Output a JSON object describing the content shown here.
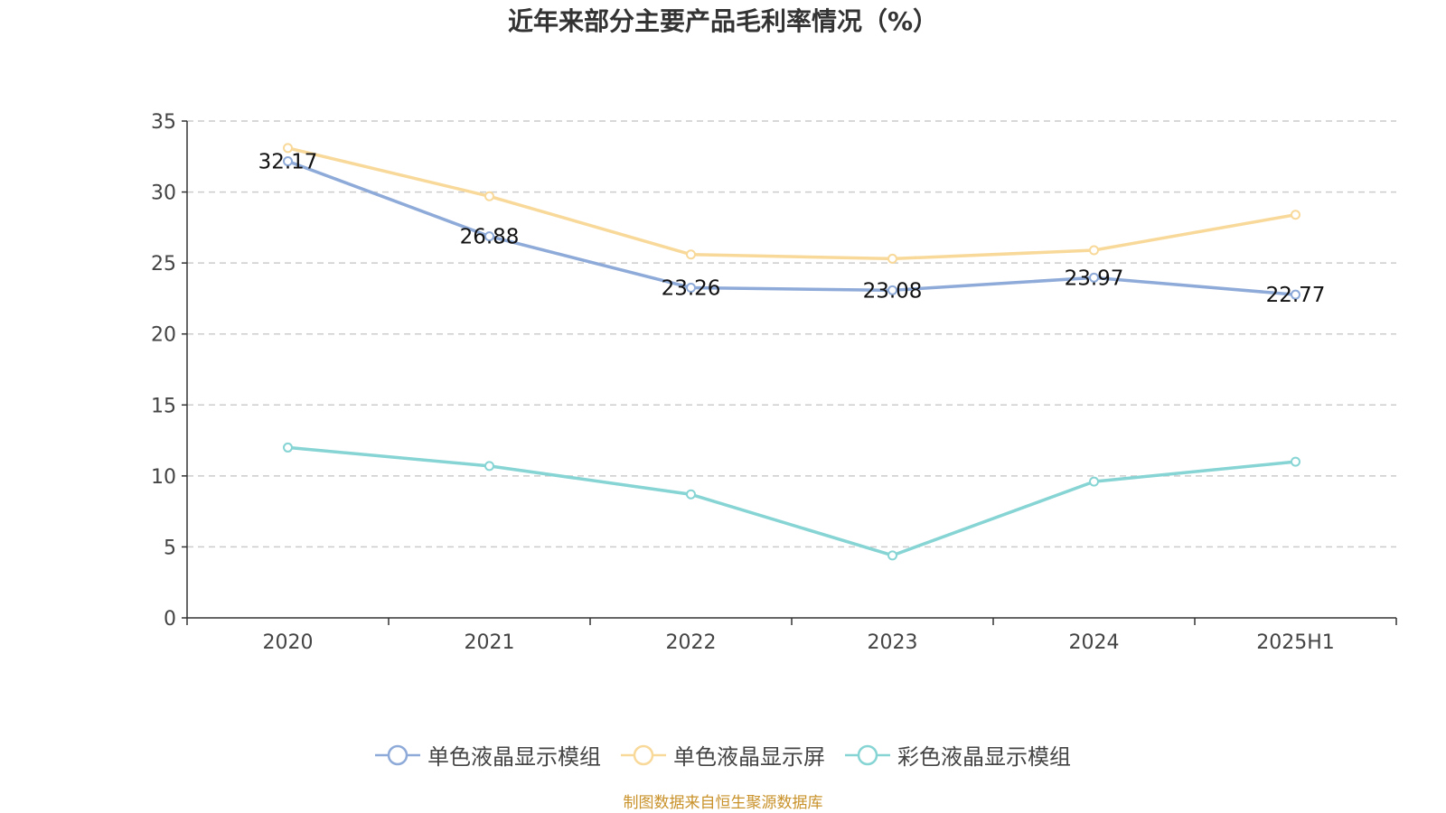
{
  "chart_data": {
    "type": "line",
    "title": "近年来部分主要产品毛利率情况（%）",
    "categories": [
      "2020",
      "2021",
      "2022",
      "2023",
      "2024",
      "2025H1"
    ],
    "ylim": [
      0,
      35
    ],
    "yticks": [
      0,
      5,
      10,
      15,
      20,
      25,
      30,
      35
    ],
    "grid": true,
    "legend_position": "bottom",
    "series": [
      {
        "name": "单色液晶显示模组",
        "color": "#8eaad8",
        "values": [
          32.17,
          26.88,
          23.26,
          23.08,
          23.97,
          22.77
        ],
        "data_labels": [
          "32.17",
          "26.88",
          "23.26",
          "23.08",
          "23.97",
          "22.77"
        ]
      },
      {
        "name": "单色液晶显示屏",
        "color": "#f8d99a",
        "values": [
          33.1,
          29.7,
          25.6,
          25.3,
          25.9,
          28.4
        ]
      },
      {
        "name": "彩色液晶显示模组",
        "color": "#86d4d4",
        "values": [
          12.0,
          10.7,
          8.7,
          4.4,
          9.6,
          11.0
        ]
      }
    ]
  },
  "source_note": "制图数据来自恒生聚源数据库"
}
